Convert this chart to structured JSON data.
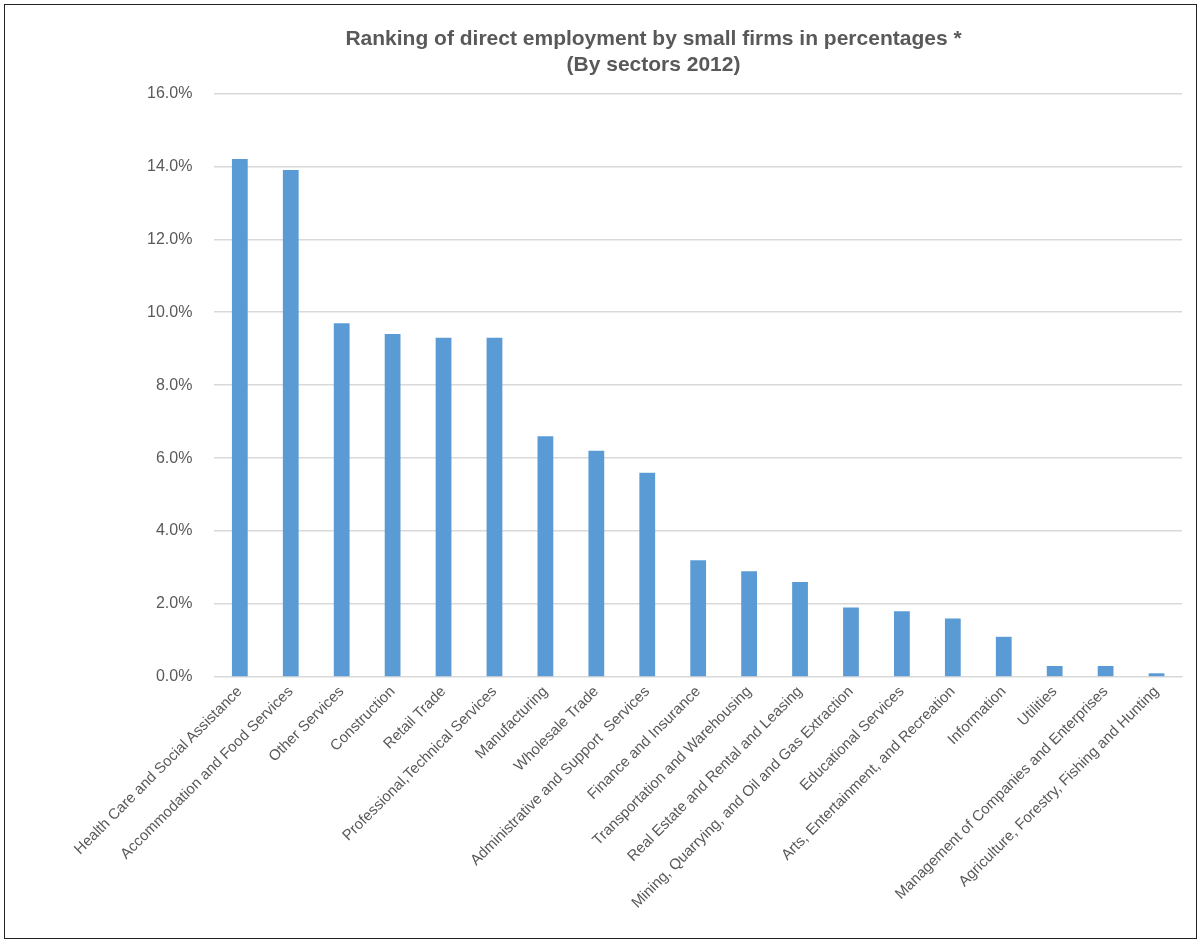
{
  "chart_data": {
    "type": "bar",
    "title": "Ranking of direct employment by small firms in percentages *",
    "subtitle": "(By sectors 2012)",
    "categories": [
      "Health Care and Social Assistance",
      "Accommodation and Food Services",
      "Other Services",
      "Construction",
      "Retail Trade",
      "Professional,Technical Services",
      "Manufacturing",
      "Wholesale Trade",
      "Administrative and Support  Services",
      "Finance and Insurance",
      "Transportation and Warehousing",
      "Real Estate and Rental and Leasing",
      "Mining, Quarrying, and Oil and Gas Extraction",
      "Educational Services",
      "Arts, Entertainment, and Recreation",
      "Information",
      "Utilities",
      "Management of Companies and Enterprises",
      "Agriculture, Forestry, Fishing and Hunting"
    ],
    "values": [
      14.2,
      13.9,
      9.7,
      9.4,
      9.3,
      9.3,
      6.6,
      6.2,
      5.6,
      3.2,
      2.9,
      2.6,
      1.9,
      1.8,
      1.6,
      1.1,
      0.3,
      0.3,
      0.1
    ],
    "color": "#5b9bd5",
    "ylim": [
      0,
      16
    ],
    "yticks": [
      {
        "value": 0,
        "label": "0.0%"
      },
      {
        "value": 2,
        "label": "2.0%"
      },
      {
        "value": 4,
        "label": "4.0%"
      },
      {
        "value": 6,
        "label": "6.0%"
      },
      {
        "value": 8,
        "label": "8.0%"
      },
      {
        "value": 10,
        "label": "10.0%"
      },
      {
        "value": 12,
        "label": "12.0%"
      },
      {
        "value": 14,
        "label": "14.0%"
      },
      {
        "value": 16,
        "label": "16.0%"
      }
    ],
    "grid": "y",
    "legend": false
  }
}
